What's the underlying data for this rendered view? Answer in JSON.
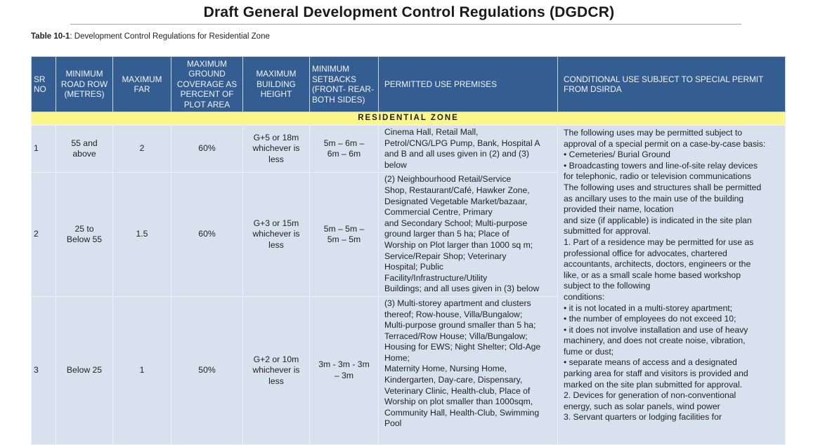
{
  "title": "Draft General Development Control Regulations (DGDCR)",
  "caption": {
    "label": "Table 10-1",
    "text": ": Development Control Regulations for Residential Zone"
  },
  "headers": [
    "SR NO",
    "MINIMUM ROAD ROW (METRES)",
    "MAXIMUM FAR",
    "MAXIMUM GROUND COVERAGE AS PERCENT OF PLOT AREA",
    "MAXIMUM BUILDING HEIGHT",
    "MINIMUM SETBACKS (FRONT- REAR- BOTH SIDES)",
    "PERMITTED USE PREMISES",
    "CONDITIONAL USE SUBJECT TO SPECIAL PERMIT FROM DSIRDA"
  ],
  "zone_label": "RESIDENTIAL ZONE",
  "rows": [
    {
      "sr": "1",
      "road": "55 and above",
      "far": "2",
      "coverage": "60%",
      "height": "G+5 or 18m whichever is less",
      "setbacks": "5m – 6m – 6m – 6m",
      "permitted": [
        "Cinema Hall, Retail Mall,",
        "Petrol/CNG/LPG Pump,  Bank, Hospital A",
        "and B and all uses given in (2) and (3)",
        "below"
      ]
    },
    {
      "sr": "2",
      "road": "25 to Below 55",
      "far": "1.5",
      "coverage": "60%",
      "height": "G+3 or 15m whichever is less",
      "setbacks": "5m – 5m – 5m – 5m",
      "permitted": [
        "(2) Neighbourhood Retail/Service",
        "Shop, Restaurant/Café, Hawker Zone,",
        "Designated Vegetable Market/bazaar,",
        "Commercial Centre, Primary",
        "and Secondary School; Multi-purpose",
        "ground larger than 5 ha; Place of",
        "Worship on Plot larger than 1000 sq m;",
        "Service/Repair Shop; Veterinary",
        "Hospital; Public",
        "Facility/Infrastructure/Utility",
        "Buildings; and all uses given in (3) below"
      ]
    },
    {
      "sr": "3",
      "road": "Below 25",
      "far": "1",
      "coverage": "50%",
      "height": "G+2 or 10m whichever is less",
      "setbacks": "3m - 3m - 3m – 3m",
      "permitted": [
        "(3) Multi-storey apartment and clusters",
        "thereof; Row-house, Villa/Bungalow;",
        "Multi-purpose ground smaller than 5 ha;",
        "Terraced/Row House; Villa/Bungalow;",
        "Housing for EWS; Night Shelter; Old-Age",
        "Home;",
        "Maternity Home, Nursing Home,",
        "Kindergarten, Day-care, Dispensary,",
        "Veterinary Clinic, Health-club, Place of",
        "Worship on plot smaller than 1000sqm,",
        "Community Hall, Health-Club, Swimming",
        "Pool"
      ]
    }
  ],
  "conditional": [
    "The following uses may be permitted subject to",
    "approval of a special permit on a case-by-case basis:",
    "• Cemeteries/ Burial Ground",
    "• Broadcasting towers and line-of-site relay devices",
    "for telephonic, radio or television communications",
    "The following uses and structures shall be permitted",
    "as ancillary uses to the main use of the building",
    "provided their name, location",
    "and size (if applicable) is indicated in the site plan",
    "submitted for approval.",
    "1. Part of a residence may be permitted for use as",
    "professional office for advocates, chartered",
    "accountants, architects, doctors, engineers or the",
    "like, or as a small scale home based workshop",
    "subject to the following",
    "conditions:",
    "• it is not located in a multi-storey apartment;",
    "• the number of employees do not exceed 10;",
    "• it does not involve installation and use of heavy",
    "machinery, and does not create noise, vibration,",
    "fume or dust;",
    "• separate means of access and a designated",
    "parking area for staff and visitors is provided and",
    "marked on the site plan submitted for approval.",
    "2. Devices for generation of non-conventional",
    "energy, such as solar panels, wind power",
    "3. Servant quarters or lodging facilities for"
  ]
}
